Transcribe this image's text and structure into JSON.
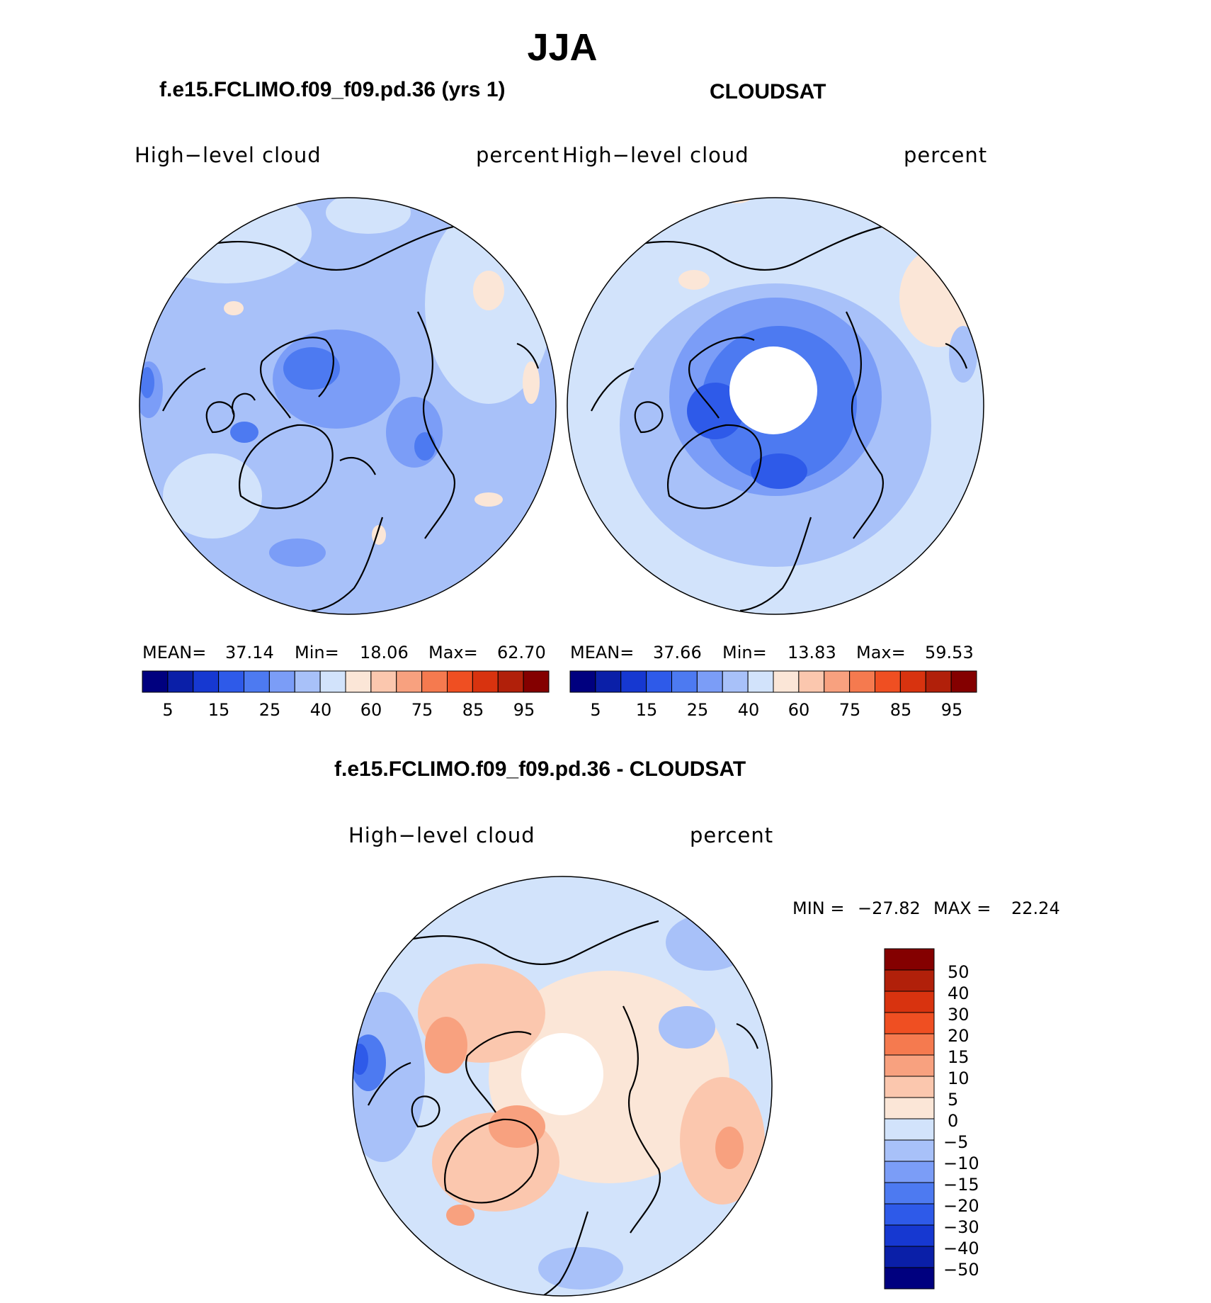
{
  "title": "JJA",
  "panels": [
    {
      "title": "f.e15.FCLIMO.f09_f09.pd.36 (yrs 1)",
      "variable_label": "High−level  cloud",
      "units_label": "percent",
      "stats": {
        "mean_label": "MEAN=",
        "mean": "37.14",
        "min_label": "Min=",
        "min": "18.06",
        "max_label": "Max=",
        "max": "62.70"
      },
      "colorbar_ticks": [
        "5",
        "15",
        "25",
        "40",
        "60",
        "75",
        "85",
        "95"
      ]
    },
    {
      "title": "CLOUDSAT",
      "variable_label": "High−level  cloud",
      "units_label": "percent",
      "stats": {
        "mean_label": "MEAN=",
        "mean": "37.66",
        "min_label": "Min=",
        "min": "13.83",
        "max_label": "Max=",
        "max": "59.53"
      },
      "colorbar_ticks": [
        "5",
        "15",
        "25",
        "40",
        "60",
        "75",
        "85",
        "95"
      ]
    },
    {
      "title": "f.e15.FCLIMO.f09_f09.pd.36 - CLOUDSAT",
      "variable_label": "High−level  cloud",
      "units_label": "percent",
      "stats": {
        "min_label": "MIN =",
        "min": "−27.82",
        "max_label": "MAX =",
        "max": "22.24"
      },
      "colorbar_ticks": [
        "50",
        "40",
        "30",
        "20",
        "15",
        "10",
        "5",
        "0",
        "−5",
        "−10",
        "−15",
        "−20",
        "−30",
        "−40",
        "−50"
      ]
    }
  ],
  "chart_data": [
    {
      "type": "heatmap",
      "title": "f.e15.FCLIMO.f09_f09.pd.36 (yrs 1)",
      "projection": "north polar stereographic",
      "variable": "High-level cloud",
      "units": "percent",
      "mean": 37.14,
      "min": 18.06,
      "max": 62.7,
      "contour_levels": [
        5,
        10,
        15,
        20,
        25,
        30,
        40,
        50,
        60,
        70,
        75,
        80,
        85,
        90,
        95
      ]
    },
    {
      "type": "heatmap",
      "title": "CLOUDSAT",
      "projection": "north polar stereographic",
      "variable": "High-level cloud",
      "units": "percent",
      "mean": 37.66,
      "min": 13.83,
      "max": 59.53,
      "contour_levels": [
        5,
        10,
        15,
        20,
        25,
        30,
        40,
        50,
        60,
        70,
        75,
        80,
        85,
        90,
        95
      ]
    },
    {
      "type": "heatmap",
      "title": "f.e15.FCLIMO.f09_f09.pd.36 - CLOUDSAT",
      "projection": "north polar stereographic",
      "variable": "High-level cloud",
      "units": "percent",
      "min": -27.82,
      "max": 22.24,
      "contour_levels": [
        -50,
        -40,
        -30,
        -20,
        -15,
        -10,
        -5,
        0,
        5,
        10,
        15,
        20,
        30,
        40,
        50
      ]
    }
  ],
  "palette": [
    "#00007f",
    "#0a1fa8",
    "#1638d1",
    "#2e5ae9",
    "#4d7af1",
    "#7b9df7",
    "#a8c1f9",
    "#d2e3fb",
    "#fbe6d7",
    "#fbc7ae",
    "#f8a17f",
    "#f57a4f",
    "#ef4f22",
    "#d8330f",
    "#b1200a",
    "#840000"
  ]
}
